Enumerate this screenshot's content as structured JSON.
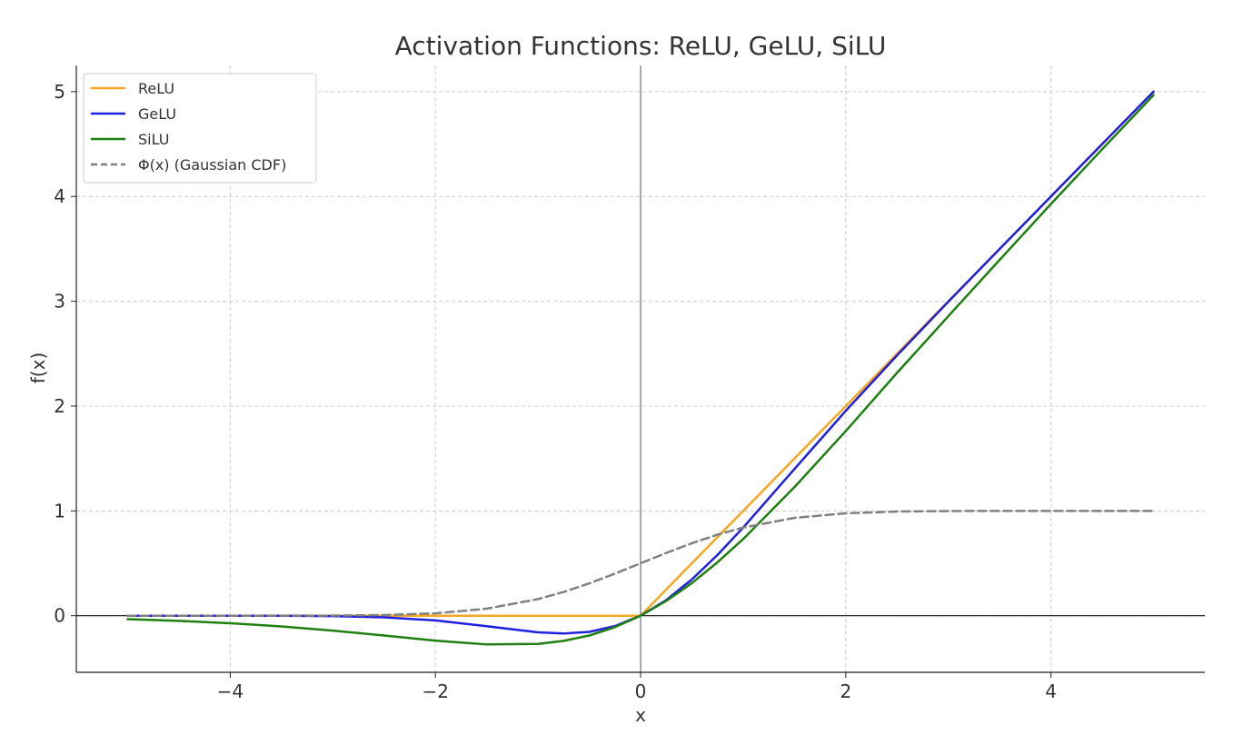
{
  "chart_data": {
    "type": "line",
    "title": "Activation Functions: ReLU, GeLU, SiLU",
    "xlabel": "x",
    "ylabel": "f(x)",
    "xlim": [
      -5.5,
      5.5
    ],
    "ylim": [
      -0.54,
      5.25
    ],
    "x_ticks": [
      -4,
      -2,
      0,
      2,
      4
    ],
    "y_ticks": [
      0,
      1,
      2,
      3,
      4,
      5
    ],
    "x_tick_labels": [
      "−4",
      "−2",
      "0",
      "2",
      "4"
    ],
    "y_tick_labels": [
      "0",
      "1",
      "2",
      "3",
      "4",
      "5"
    ],
    "grid": true,
    "grid_style": "dashed",
    "legend_position": "top-left",
    "reference_lines": {
      "x": 0,
      "y": 0
    },
    "x": [
      -5,
      -4.5,
      -4,
      -3.5,
      -3,
      -2.5,
      -2,
      -1.5,
      -1,
      -0.75,
      -0.5,
      -0.25,
      0,
      0.25,
      0.5,
      0.75,
      1,
      1.5,
      2,
      2.5,
      3,
      3.5,
      4,
      4.5,
      5
    ],
    "series": [
      {
        "name": "ReLU",
        "color": "#f5a623",
        "dash": "solid",
        "values": [
          0,
          0,
          0,
          0,
          0,
          0,
          0,
          0,
          0,
          0,
          0,
          0,
          0,
          0.25,
          0.5,
          0.75,
          1,
          1.5,
          2,
          2.5,
          3,
          3.5,
          4,
          4.5,
          5
        ]
      },
      {
        "name": "GeLU",
        "color": "#1f1fe0",
        "dash": "solid",
        "values": [
          0,
          0,
          0,
          -0.001,
          -0.004,
          -0.016,
          -0.045,
          -0.1,
          -0.159,
          -0.17,
          -0.154,
          -0.099,
          0,
          0.149,
          0.346,
          0.58,
          0.841,
          1.4,
          1.955,
          2.484,
          2.996,
          3.499,
          4,
          4.5,
          5
        ]
      },
      {
        "name": "SiLU",
        "color": "#1e8010",
        "dash": "solid",
        "values": [
          -0.033,
          -0.049,
          -0.072,
          -0.102,
          -0.142,
          -0.189,
          -0.238,
          -0.274,
          -0.269,
          -0.24,
          -0.189,
          -0.109,
          0,
          0.141,
          0.311,
          0.51,
          0.731,
          1.227,
          1.762,
          2.317,
          2.858,
          3.395,
          3.928,
          4.451,
          4.967
        ]
      },
      {
        "name": "Φ(x) (Gaussian CDF)",
        "color": "#808080",
        "dash": "dashed",
        "values": [
          0,
          0,
          0,
          0.0002,
          0.0013,
          0.0062,
          0.0228,
          0.0668,
          0.1587,
          0.2266,
          0.3085,
          0.4013,
          0.5,
          0.5987,
          0.6915,
          0.7734,
          0.8413,
          0.9332,
          0.9772,
          0.9938,
          0.9987,
          0.9998,
          1,
          1,
          1
        ]
      }
    ]
  }
}
